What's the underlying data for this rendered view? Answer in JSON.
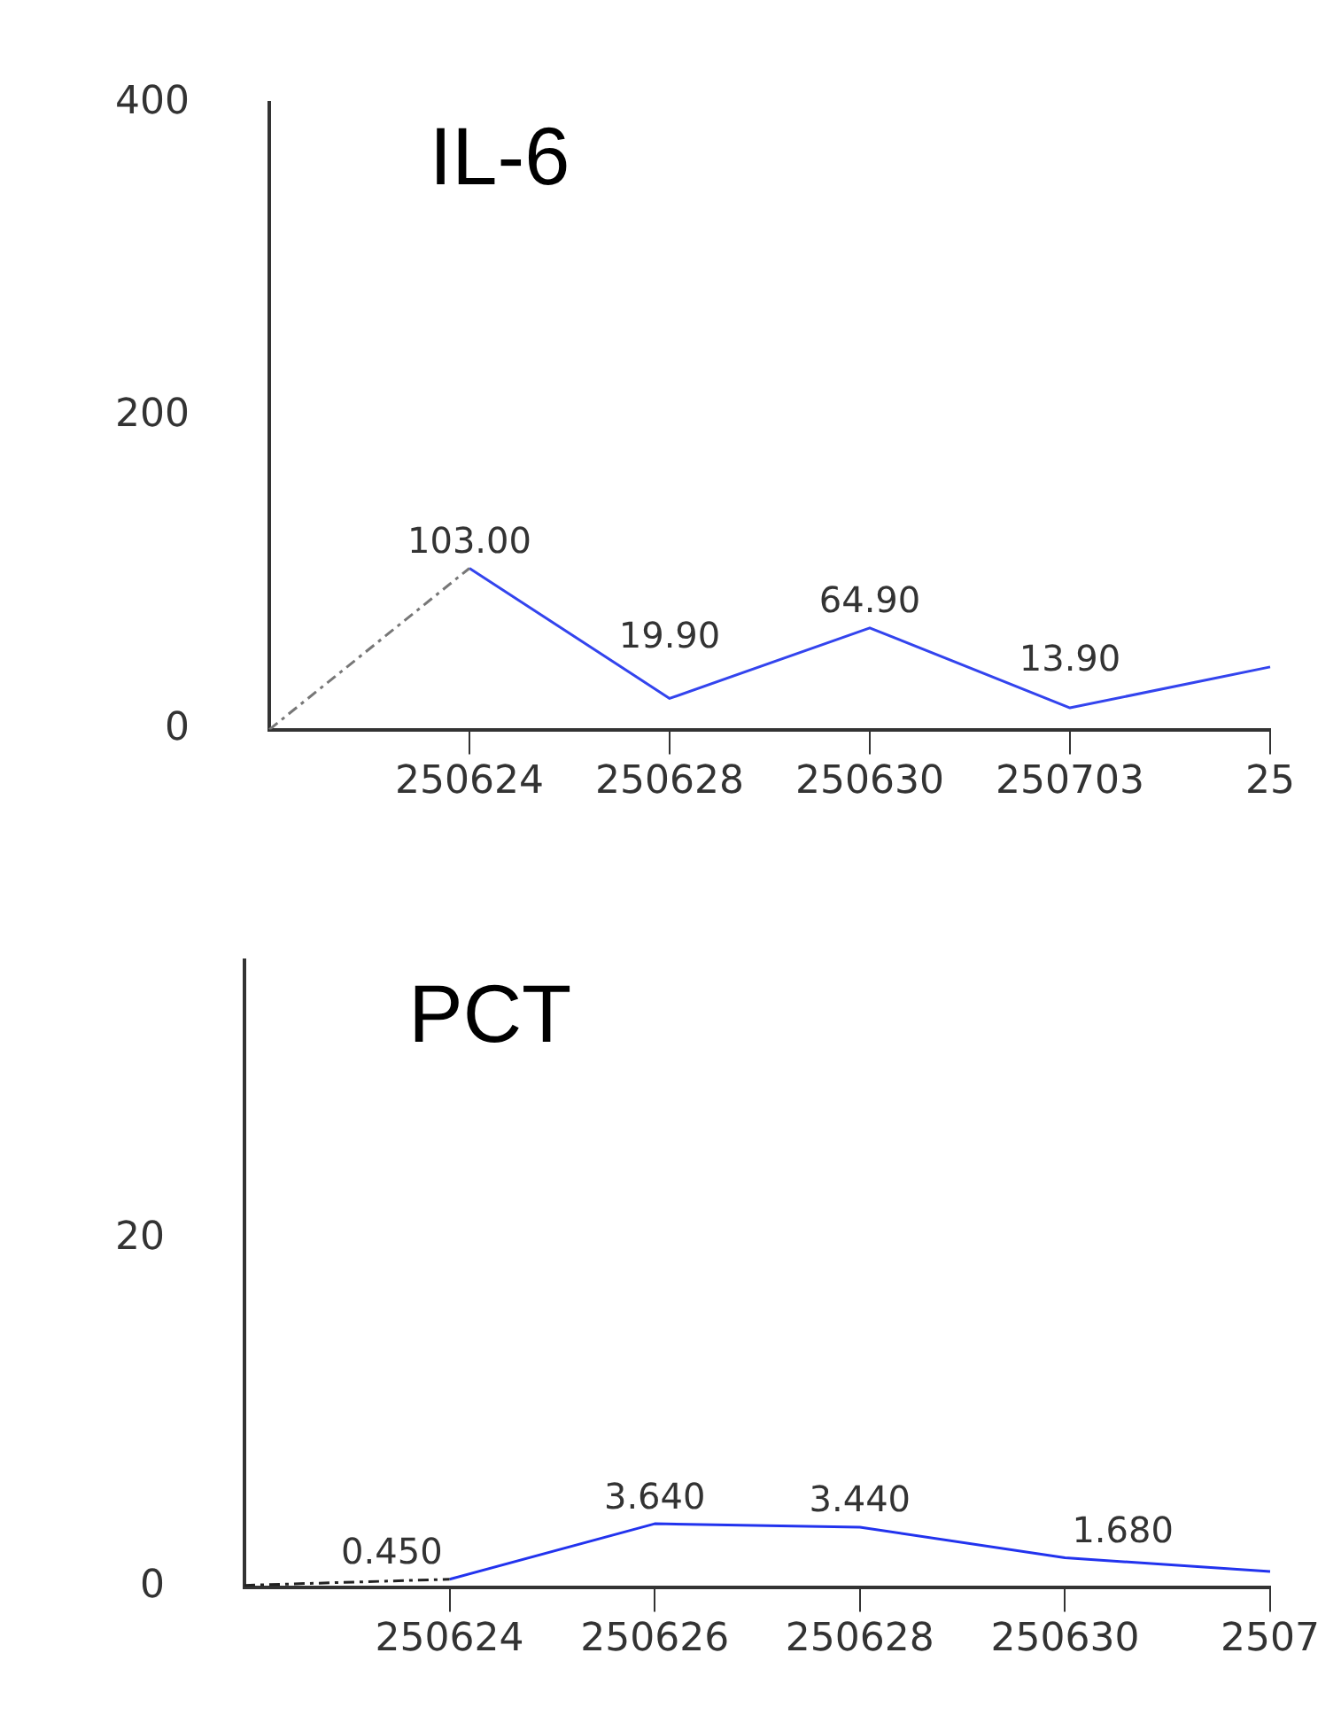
{
  "chart_data": [
    {
      "type": "line",
      "title": "IL-6",
      "categories": [
        null,
        "250624",
        "250628",
        "250630",
        "250703",
        "25"
      ],
      "ylim": [
        0,
        400
      ],
      "yticks": [
        0,
        200,
        400
      ],
      "grid": false,
      "legend": false,
      "marker": "none",
      "series": [
        {
          "color": "#777777",
          "line_style": "dashed",
          "values": [
            0,
            103,
            null,
            null,
            null,
            null
          ]
        },
        {
          "color": "#3344ee",
          "line_style": "solid",
          "values": [
            null,
            103,
            19.9,
            64.9,
            13.9,
            40
          ],
          "value_labels": [
            null,
            "103.00",
            "19.90",
            "64.90",
            "13.90",
            null
          ]
        }
      ]
    },
    {
      "type": "line",
      "title": "PCT",
      "categories": [
        null,
        "250624",
        "250626",
        "250628",
        "250630",
        "2507"
      ],
      "ylim": [
        0,
        36
      ],
      "yticks": [
        0,
        20
      ],
      "grid": false,
      "legend": false,
      "marker": "none",
      "series": [
        {
          "color": "#222222",
          "line_style": "dashed",
          "values": [
            0.1,
            0.45,
            null,
            null,
            null,
            null
          ]
        },
        {
          "color": "#2233ee",
          "line_style": "solid",
          "values": [
            null,
            0.45,
            3.64,
            3.44,
            1.68,
            0.9
          ],
          "value_labels": [
            null,
            "0.450",
            "3.640",
            "3.440",
            "1.680",
            null
          ]
        }
      ]
    }
  ]
}
